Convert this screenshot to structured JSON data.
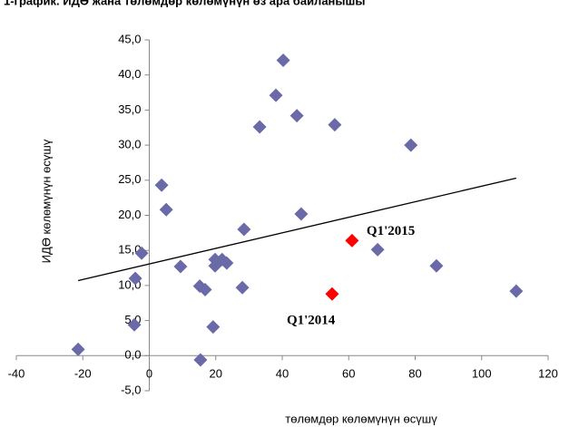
{
  "chart_data": {
    "type": "scatter",
    "title": "1-график. ИДӨ жана төлөмдөр көлөмүнүн өз ара байланышы",
    "x_label": "төлөмдөр көлөмүнүн өсүшү",
    "y_label": "ИДӨ көлөмүнүн өсүшү",
    "xlim": [
      -40,
      120
    ],
    "xticks": [
      -40,
      -20,
      0,
      20,
      40,
      60,
      80,
      100,
      120
    ],
    "ylim": [
      -5,
      45
    ],
    "yticks": [
      {
        "value": -5,
        "label": "-5,0"
      },
      {
        "value": 0,
        "label": "0,0"
      },
      {
        "value": 5,
        "label": "5,0"
      },
      {
        "value": 10,
        "label": "10,0"
      },
      {
        "value": 15,
        "label": "15,0"
      },
      {
        "value": 20,
        "label": "20,0"
      },
      {
        "value": 25,
        "label": "25,0"
      },
      {
        "value": 30,
        "label": "30,0"
      },
      {
        "value": 35,
        "label": "35,0"
      },
      {
        "value": 40,
        "label": "40,0"
      },
      {
        "value": 45,
        "label": "45,0"
      }
    ],
    "series": [
      {
        "color": "#6a6aa8",
        "x": [
          -21.4,
          3.7,
          5.1,
          -2.3,
          -4.2,
          -4.5,
          9.4,
          15.2,
          16.8,
          15.4,
          19.2,
          19.8,
          19.8,
          21.9,
          23.3,
          28.0,
          28.5,
          33.2,
          38.1,
          40.3,
          44.4,
          45.7,
          55.8,
          78.7,
          68.7,
          86.4,
          110.4
        ],
        "y": [
          0.9,
          24.3,
          20.8,
          14.6,
          11.0,
          4.4,
          12.7,
          9.9,
          9.4,
          -0.6,
          4.1,
          12.8,
          13.7,
          13.7,
          13.2,
          9.7,
          18.0,
          32.6,
          37.1,
          42.1,
          34.2,
          20.2,
          32.9,
          30.0,
          15.1,
          12.8,
          9.2
        ]
      },
      {
        "color": "#ff0000",
        "x": [
          61.0,
          55.0
        ],
        "y": [
          16.4,
          8.8
        ]
      }
    ],
    "trend_line": {
      "x": [
        -21.4,
        110.4
      ],
      "y": [
        10.7,
        25.3
      ],
      "color": "#000000"
    },
    "annotations": [
      {
        "text": "Q1'2015",
        "x": 61.0,
        "y": 16.4
      },
      {
        "text": "Q1'2014",
        "x": 55.0,
        "y": 8.8
      }
    ]
  }
}
